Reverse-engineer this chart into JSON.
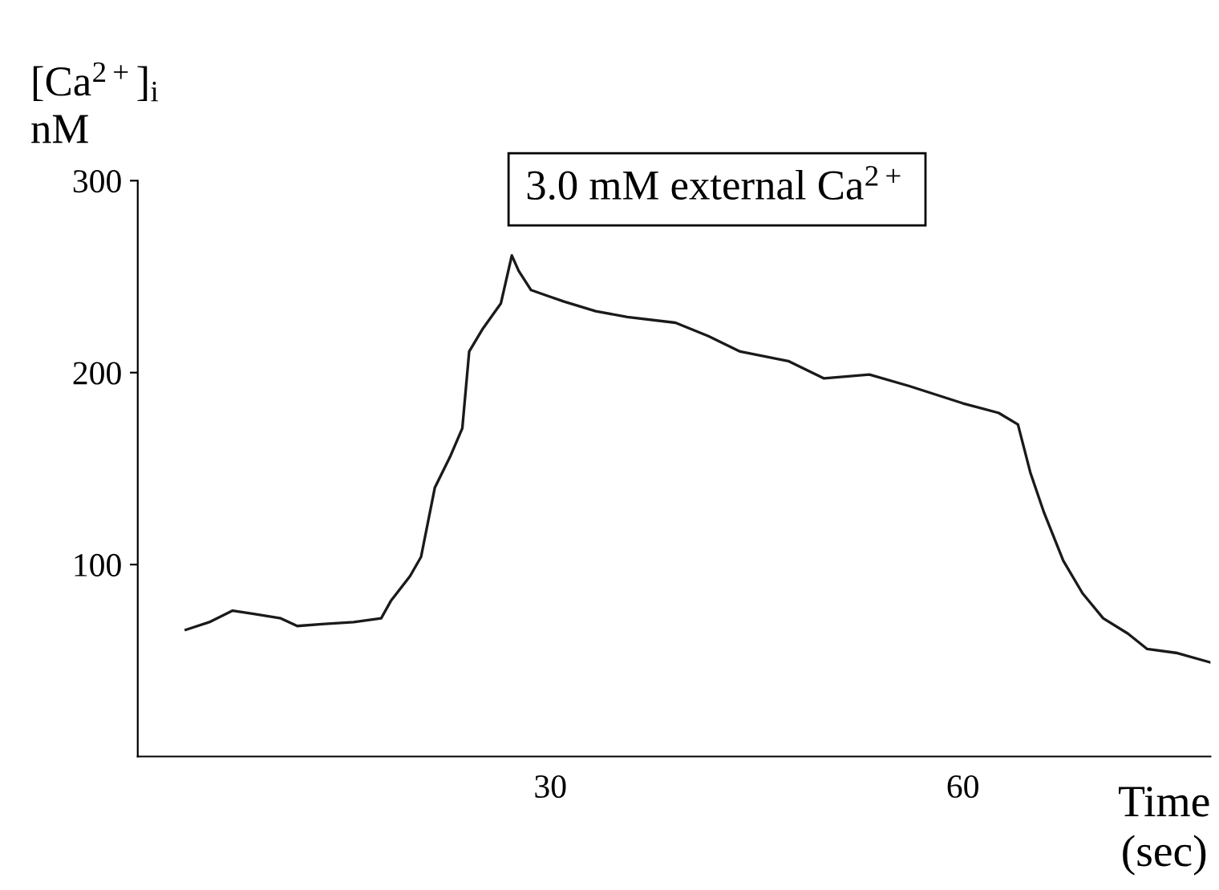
{
  "chart_data": {
    "type": "line",
    "ylabel": "[Ca$^{2+}$]$_{i}$\nnM",
    "xlabel": "Time\n(sec)",
    "annotations": [
      "3.0 mM external Ca$^{2+}$"
    ],
    "xlim": [
      0,
      78
    ],
    "xticks": [
      30,
      60
    ],
    "ylim": [
      0,
      300
    ],
    "yticks": [
      100,
      200,
      300
    ],
    "grid": false,
    "legend": false,
    "marker": "none",
    "line_style": "solid",
    "series": [
      {
        "color": "#1a1a1a",
        "x": [
          3.5,
          5.2,
          6.9,
          8.7,
          10.4,
          11.6,
          13.4,
          15.7,
          17.7,
          18.4,
          19.8,
          20.6,
          21.6,
          22.7,
          23.6,
          24.1,
          25.1,
          26.4,
          27.2,
          27.7,
          28.6,
          29.8,
          31.0,
          33.3,
          35.6,
          39.1,
          41.5,
          43.8,
          47.3,
          49.9,
          53.2,
          56.1,
          60.0,
          62.6,
          64.0,
          64.9,
          65.9,
          67.3,
          68.7,
          70.2,
          72.0,
          73.4,
          75.5,
          78.0
        ],
        "values": [
          66,
          70,
          76,
          74,
          72,
          68,
          69,
          70,
          72,
          81,
          94,
          104,
          140,
          156,
          171,
          211,
          223,
          236,
          261,
          253,
          243,
          240,
          237,
          232,
          229,
          226,
          219,
          211,
          206,
          197,
          199,
          193,
          184,
          179,
          173,
          148,
          127,
          102,
          85,
          72,
          64,
          56,
          54,
          49
        ]
      }
    ]
  }
}
